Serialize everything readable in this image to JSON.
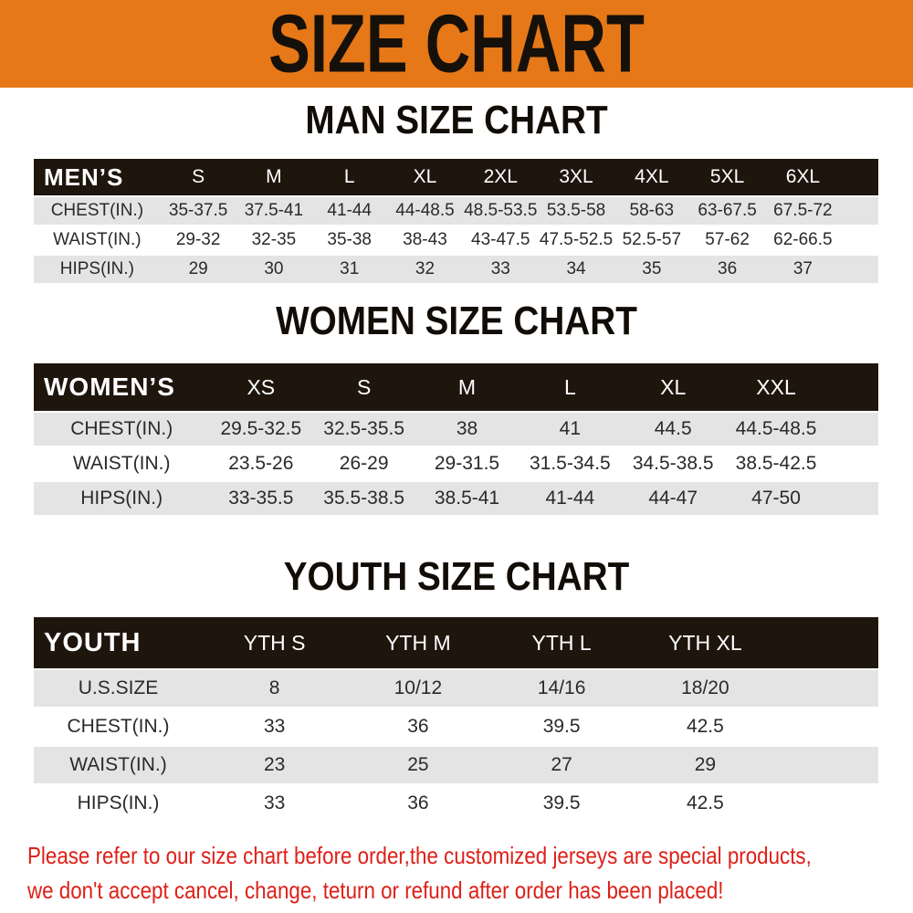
{
  "banner": {
    "title": "SIZE CHART",
    "bg_color": "#E67817",
    "text_color": "#16100A"
  },
  "sections": [
    {
      "id": "men",
      "heading": "MAN SIZE CHART",
      "table": {
        "corner_label": "MEN’S",
        "size_columns": [
          "S",
          "M",
          "L",
          "XL",
          "2XL",
          "3XL",
          "4XL",
          "5XL",
          "6XL"
        ],
        "rows": [
          {
            "label": "CHEST(IN.)",
            "values": [
              "35-37.5",
              "37.5-41",
              "41-44",
              "44-48.5",
              "48.5-53.5",
              "53.5-58",
              "58-63",
              "63-67.5",
              "67.5-72"
            ]
          },
          {
            "label": "WAIST(IN.)",
            "values": [
              "29-32",
              "32-35",
              "35-38",
              "38-43",
              "43-47.5",
              "47.5-52.5",
              "52.5-57",
              "57-62",
              "62-66.5"
            ]
          },
          {
            "label": "HIPS(IN.)",
            "values": [
              "29",
              "30",
              "31",
              "32",
              "33",
              "34",
              "35",
              "36",
              "37"
            ]
          }
        ]
      }
    },
    {
      "id": "women",
      "heading": "WOMEN SIZE CHART",
      "table": {
        "corner_label": "WOMEN’S",
        "size_columns": [
          "XS",
          "S",
          "M",
          "L",
          "XL",
          "XXL"
        ],
        "rows": [
          {
            "label": "CHEST(IN.)",
            "values": [
              "29.5-32.5",
              "32.5-35.5",
              "38",
              "41",
              "44.5",
              "44.5-48.5"
            ]
          },
          {
            "label": "WAIST(IN.)",
            "values": [
              "23.5-26",
              "26-29",
              "29-31.5",
              "31.5-34.5",
              "34.5-38.5",
              "38.5-42.5"
            ]
          },
          {
            "label": "HIPS(IN.)",
            "values": [
              "33-35.5",
              "35.5-38.5",
              "38.5-41",
              "41-44",
              "44-47",
              "47-50"
            ]
          }
        ]
      }
    },
    {
      "id": "youth",
      "heading": "YOUTH SIZE CHART",
      "table": {
        "corner_label": "YOUTH",
        "size_columns": [
          "YTH S",
          "YTH M",
          "YTH L",
          "YTH XL"
        ],
        "rows": [
          {
            "label": "U.S.SIZE",
            "values": [
              "8",
              "10/12",
              "14/16",
              "18/20"
            ]
          },
          {
            "label": "CHEST(IN.)",
            "values": [
              "33",
              "36",
              "39.5",
              "42.5"
            ]
          },
          {
            "label": "WAIST(IN.)",
            "values": [
              "23",
              "25",
              "27",
              "29"
            ]
          },
          {
            "label": "HIPS(IN.)",
            "values": [
              "33",
              "36",
              "39.5",
              "42.5"
            ]
          }
        ]
      }
    }
  ],
  "footer": {
    "line1": "Please refer to our size chart before order,the customized jerseys are special products,",
    "line2": "we don't accept cancel, change, teturn or refund after order has been placed!",
    "text_color": "#DD2018"
  },
  "colors": {
    "banner_orange": "#E67817",
    "table_header_bg": "#1E150D",
    "row_alt_gray": "#E4E4E4",
    "disclaimer_red": "#DD2018"
  }
}
